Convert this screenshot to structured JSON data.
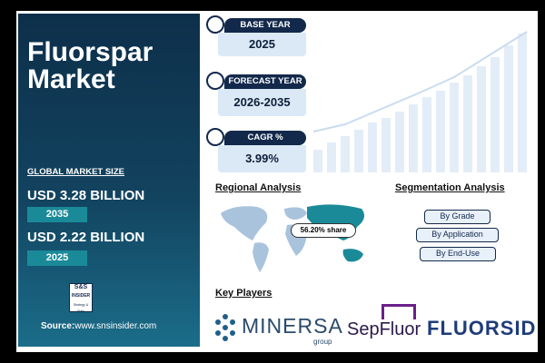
{
  "header": {
    "title_line1": "Fluorspar",
    "title_line2": "Market"
  },
  "market_size": {
    "label": "GLOBAL MARKET SIZE",
    "items": [
      {
        "value": "USD 3.28 BILLION",
        "year": "2035"
      },
      {
        "value": "USD 2.22 BILLION",
        "year": "2025"
      }
    ]
  },
  "logo": {
    "line1": "S&S",
    "line2": "INSIDER",
    "line3": "Strategy & Stats"
  },
  "source": {
    "label": "Source:",
    "url": "www.snsinsider.com"
  },
  "stats": [
    {
      "label": "BASE YEAR",
      "value": "2025"
    },
    {
      "label": "FORECAST YEAR",
      "value": "2026-2035"
    },
    {
      "label": "CAGR %",
      "value": "3.99%"
    }
  ],
  "regional": {
    "title": "Regional Analysis",
    "callout": "56.20% share"
  },
  "segmentation": {
    "title": "Segmentation Analysis",
    "items": [
      "By Grade",
      "By Application",
      "By End-Use"
    ]
  },
  "key_players": {
    "title": "Key Players",
    "players": [
      {
        "name": "MINERSA",
        "sub": "group"
      },
      {
        "name": "SepFluor"
      },
      {
        "name": "FLUORSID"
      }
    ]
  }
}
